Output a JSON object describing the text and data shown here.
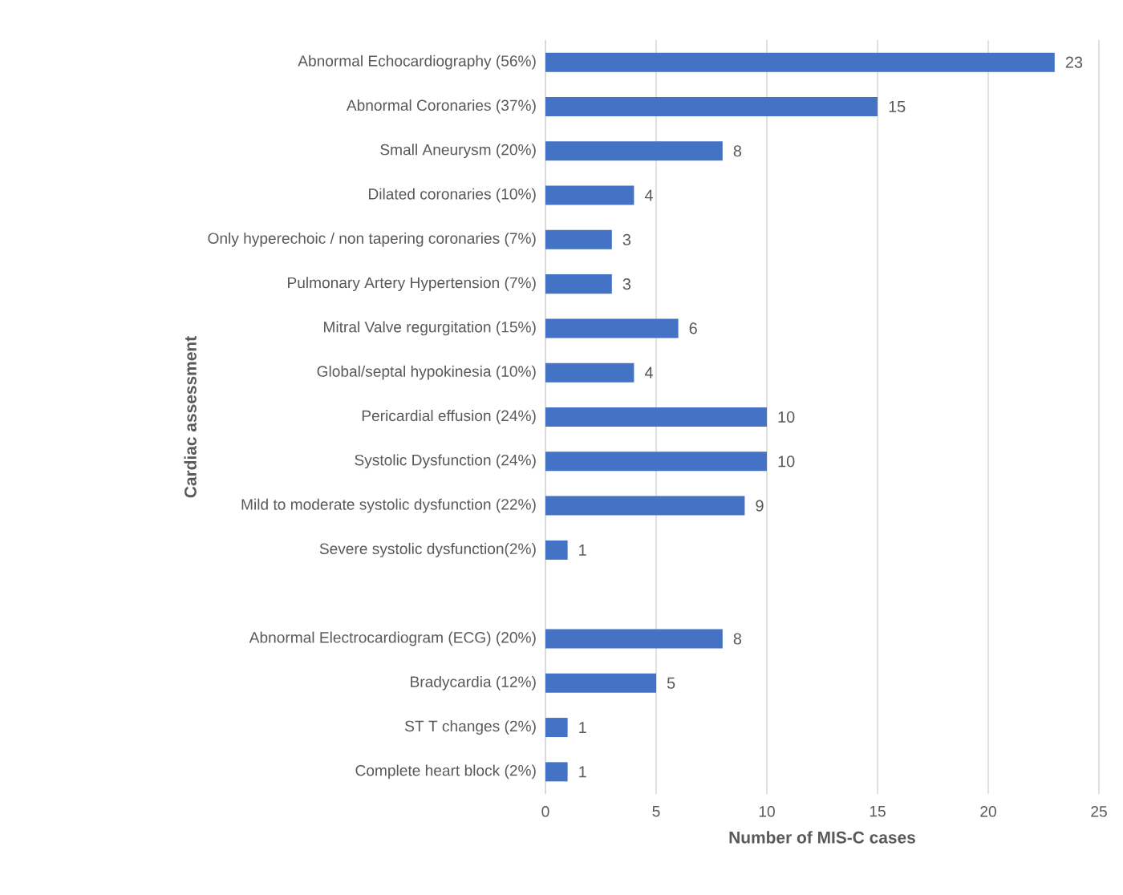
{
  "chart_data": {
    "type": "bar",
    "orientation": "horizontal",
    "xlabel": "Number of MIS-C cases",
    "ylabel": "Cardiac assessment",
    "categories": [
      "Abnormal Echocardiography (56%)",
      "Abnormal Coronaries (37%)",
      "Small Aneurysm (20%)",
      "Dilated coronaries (10%)",
      "Only hyperechoic / non tapering coronaries (7%)",
      "Pulmonary Artery Hypertension  (7%)",
      "Mitral Valve regurgitation (15%)",
      "Global/septal hypokinesia (10%)",
      "Pericardial effusion (24%)",
      "Systolic Dysfunction (24%)",
      "Mild to moderate systolic dysfunction (22%)",
      "Severe systolic dysfunction(2%)",
      null,
      "Abnormal Electrocardiogram (ECG) (20%)",
      "Bradycardia (12%)",
      "ST T changes (2%)",
      "Complete heart block (2%)"
    ],
    "values": [
      23,
      15,
      8,
      4,
      3,
      3,
      6,
      4,
      10,
      10,
      9,
      1,
      null,
      8,
      5,
      1,
      1
    ],
    "color": "#4472c4",
    "xlim": [
      0,
      25
    ],
    "xticks": [
      0,
      5,
      10,
      15,
      20,
      25
    ],
    "grid": "x",
    "data_labels": true
  }
}
